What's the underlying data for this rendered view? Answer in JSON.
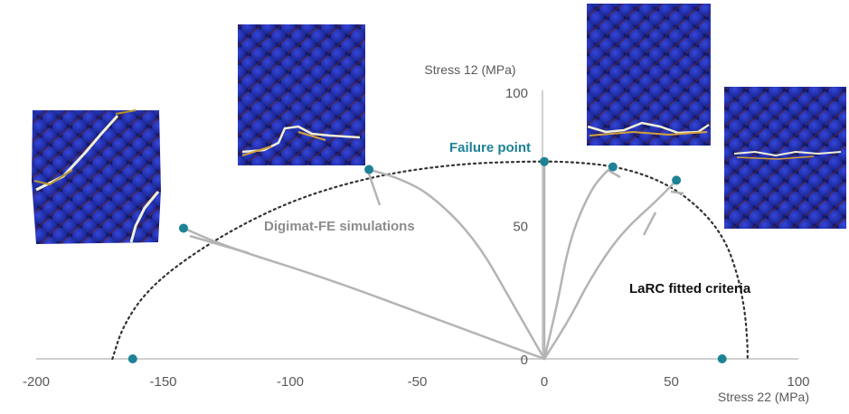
{
  "chart_data": {
    "type": "scatter",
    "title": "",
    "xlabel": "Stress 22 (MPa)",
    "ylabel": "Stress 12 (MPa)",
    "xlim": [
      -200,
      100
    ],
    "ylim": [
      0,
      100
    ],
    "x_ticks": [
      "-200",
      "-150",
      "-100",
      "-50",
      "0",
      "50",
      "100"
    ],
    "y_ticks": [
      "0",
      "50",
      "100"
    ],
    "grid": false,
    "failure_points": [
      {
        "x": -162,
        "y": 0
      },
      {
        "x": -142,
        "y": 49
      },
      {
        "x": -69,
        "y": 71
      },
      {
        "x": 0,
        "y": 74
      },
      {
        "x": 27,
        "y": 72
      },
      {
        "x": 52,
        "y": 67
      },
      {
        "x": 70,
        "y": 0
      }
    ],
    "simulation_paths": [
      [
        [
          0,
          0
        ],
        [
          -40,
          14
        ],
        [
          -85,
          30
        ],
        [
          -125,
          42
        ],
        [
          -142,
          49
        ]
      ],
      [
        [
          0,
          0
        ],
        [
          -12,
          20
        ],
        [
          -27,
          45
        ],
        [
          -45,
          62
        ],
        [
          -58,
          68
        ],
        [
          -69,
          71
        ]
      ],
      [
        [
          0,
          0
        ],
        [
          0,
          74
        ]
      ],
      [
        [
          0,
          0
        ],
        [
          5,
          20
        ],
        [
          10,
          45
        ],
        [
          18,
          63
        ],
        [
          24,
          70
        ],
        [
          27,
          72
        ]
      ],
      [
        [
          0,
          0
        ],
        [
          10,
          15
        ],
        [
          18,
          30
        ],
        [
          30,
          47
        ],
        [
          45,
          60
        ],
        [
          52,
          67
        ]
      ]
    ],
    "larc_criterion": [
      [
        -170,
        0
      ],
      [
        -166,
        12
      ],
      [
        -157,
        25
      ],
      [
        -142,
        37
      ],
      [
        -120,
        50
      ],
      [
        -95,
        61
      ],
      [
        -65,
        69
      ],
      [
        -35,
        73
      ],
      [
        -10,
        74
      ],
      [
        10,
        74
      ],
      [
        30,
        72
      ],
      [
        48,
        66
      ],
      [
        62,
        56
      ],
      [
        71,
        45
      ],
      [
        76,
        32
      ],
      [
        79,
        18
      ],
      [
        80,
        5
      ],
      [
        80,
        0
      ]
    ],
    "annotations": {
      "failure_point": "Failure point",
      "simulations": "Digimat-FE simulations",
      "larc": "LaRC fitted criteria"
    },
    "colors": {
      "failure_point": "#1e8296",
      "simulation": "#b4b4b4",
      "criterion": "#333333",
      "axis": "#bfbfbf",
      "micro_background": "#0e1a7a",
      "micro_fibre": "#2535c8",
      "micro_matrix": "#7a2a2a",
      "micro_crack": "#ffffff"
    }
  }
}
